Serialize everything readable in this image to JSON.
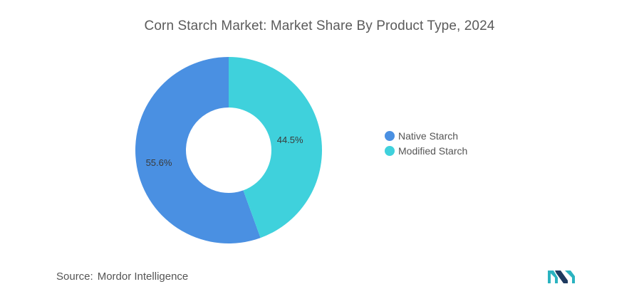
{
  "header": {
    "title": "Corn Starch Market: Market Share By Product Type, 2024"
  },
  "chart_data": {
    "type": "pie",
    "variant": "donut",
    "title": "Corn Starch Market: Market Share By Product Type, 2024",
    "categories": [
      "Native Starch",
      "Modified Starch"
    ],
    "values": [
      55.6,
      44.5
    ],
    "data_labels": [
      "55.6%",
      "44.5%"
    ],
    "colors": [
      "#4a90e2",
      "#3fd1dc"
    ],
    "legend_position": "right",
    "start_angle": "top",
    "direction": "counter-clockwise for first slice"
  },
  "legend": {
    "items": [
      {
        "label": "Native Starch",
        "color": "#4a90e2"
      },
      {
        "label": "Modified Starch",
        "color": "#3fd1dc"
      }
    ]
  },
  "footer": {
    "source_label": "Source:",
    "source_value": "Mordor Intelligence"
  },
  "logo": {
    "icon": "mordor-intelligence-logo-icon",
    "colors": [
      "#1e3a5f",
      "#2bb3c0"
    ]
  }
}
